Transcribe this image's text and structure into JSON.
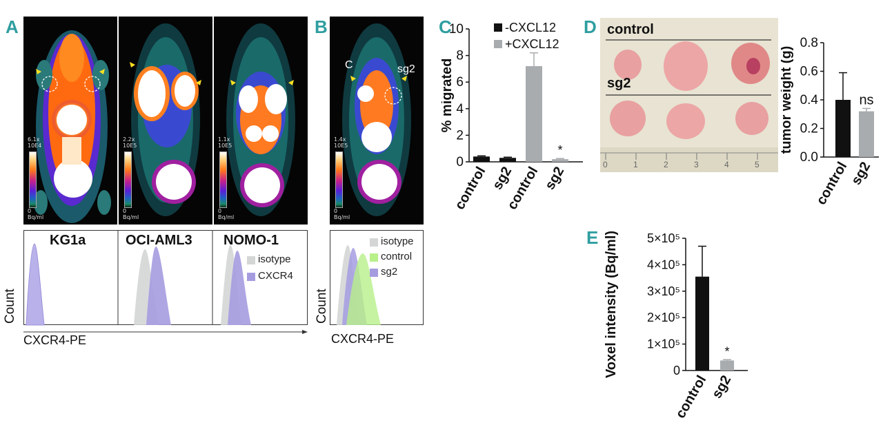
{
  "panels": {
    "A": "A",
    "B": "B",
    "C": "C",
    "D": "D",
    "E": "E"
  },
  "pet_scales_a": [
    {
      "top": "6.1x\n10E4",
      "bottom": "0\nBq/ml"
    },
    {
      "top": "2.2x\n10E5",
      "bottom": "0\nBq/ml"
    },
    {
      "top": "1.1x\n10E5",
      "bottom": "0\nBq/ml"
    }
  ],
  "pet_scale_b": {
    "top": "1.4x\n10E5",
    "bottom": "0\nBq/ml"
  },
  "pet_b_labels": {
    "left": "C",
    "right": "sg2"
  },
  "hist_a": {
    "titles": [
      "KG1a",
      "OCI-AML3",
      "NOMO-1"
    ],
    "legend": [
      {
        "label": "isotype",
        "color": "#d4d6d6"
      },
      {
        "label": "CXCR4",
        "color": "#a59ce0"
      }
    ],
    "ylabel": "Count",
    "xlabel": "CXCR4-PE"
  },
  "hist_b": {
    "legend": [
      {
        "label": "isotype",
        "color": "#d4d6d6"
      },
      {
        "label": "control",
        "color": "#b8f08a"
      },
      {
        "label": "sg2",
        "color": "#a59ce0"
      }
    ],
    "ylabel": "Count",
    "xlabel": "CXCR4-PE"
  },
  "photo_d": {
    "top_label": "control",
    "bottom_label": "sg2",
    "ruler": [
      "0",
      "1",
      "2",
      "3",
      "4",
      "5"
    ]
  },
  "chart_data": [
    {
      "type": "bar",
      "panel": "C",
      "ylabel": "% migrated",
      "ylim": [
        0,
        10
      ],
      "yticks": [
        "0",
        "2",
        "4",
        "6",
        "8",
        "10"
      ],
      "categories": [
        "control",
        "sg2",
        "control",
        "sg2"
      ],
      "values": [
        0.4,
        0.3,
        7.2,
        0.2
      ],
      "errors": [
        0.05,
        0.05,
        1.0,
        0.05
      ],
      "bar_colors": [
        "#111111",
        "#111111",
        "#a8acae",
        "#a8acae"
      ],
      "legend": [
        {
          "name": "-CXCL12",
          "color": "#111111"
        },
        {
          "name": "+CXCL12",
          "color": "#a8acae"
        }
      ],
      "annotations": [
        {
          "index": 3,
          "text": "*"
        }
      ]
    },
    {
      "type": "bar",
      "panel": "D",
      "ylabel": "tumor weight (g)",
      "ylim": [
        0,
        0.8
      ],
      "yticks": [
        "0.0",
        "0.2",
        "0.4",
        "0.6",
        "0.8"
      ],
      "categories": [
        "control",
        "sg2"
      ],
      "values": [
        0.4,
        0.32
      ],
      "errors": [
        0.19,
        0.02
      ],
      "bar_colors": [
        "#111111",
        "#a8acae"
      ],
      "annotations": [
        {
          "index": 1,
          "text": "ns"
        }
      ]
    },
    {
      "type": "bar",
      "panel": "E",
      "ylabel": "Voxel intensity (Bq/ml)",
      "ylim": [
        0,
        500000
      ],
      "yticks": [
        "0",
        "1×10⁵",
        "2×10⁵",
        "3×10⁵",
        "4×10⁵",
        "5×10⁵"
      ],
      "categories": [
        "control",
        "sg2"
      ],
      "values": [
        355000,
        38000
      ],
      "errors": [
        115000,
        3000
      ],
      "bar_colors": [
        "#111111",
        "#a8acae"
      ],
      "annotations": [
        {
          "index": 1,
          "text": "*"
        }
      ]
    }
  ]
}
